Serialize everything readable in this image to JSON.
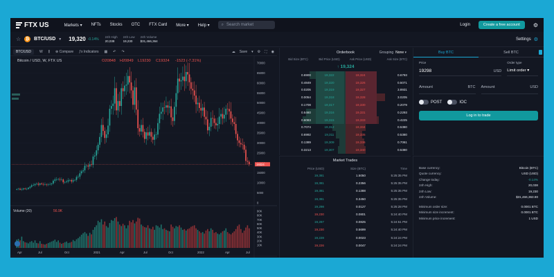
{
  "nav": {
    "logo": "FTX US",
    "links": [
      "Markets ▾",
      "NFTs",
      "Stocks",
      "OTC",
      "FTX Card",
      "More ▾",
      "Help ▾"
    ],
    "search_placeholder": "Search market",
    "login": "Login",
    "cta": "Create a free account"
  },
  "ticker": {
    "pair": "BTC/USD",
    "price": "19,320",
    "change": "-0.14%",
    "high_label": "24h High",
    "high": "20,038",
    "low_label": "24h Low",
    "low": "19,230",
    "vol_label": "24h Volume",
    "vol": "$31,466,364",
    "settings": "Settings"
  },
  "chart_toolbar": {
    "tab": "BTC/USD",
    "interval": "W",
    "compare": "Compare",
    "indicators": "Indicators",
    "save": "Save"
  },
  "chart_data": {
    "type": "candlestick",
    "title": "Bitcoin / USD, W, FTX US",
    "ohlc": {
      "O": "O20848",
      "H": "H20849",
      "L": "L19230",
      "C": "C19324",
      "chg": "-1523 (-7.31%)"
    },
    "current_price_label": "19324",
    "ylim": [
      0,
      70000
    ],
    "yticks": [
      "70000",
      "65000",
      "60000",
      "55000",
      "50000",
      "45000",
      "40000",
      "35000",
      "30000",
      "25000",
      "20000",
      "15000",
      "10000",
      "5000",
      "0"
    ],
    "xticks": [
      "Apr",
      "Jul",
      "Oct",
      "2021",
      "Apr",
      "Jul",
      "Oct",
      "2022",
      "Apr",
      "Jul"
    ],
    "closes": [
      6900,
      7100,
      6600,
      6800,
      7200,
      6900,
      7000,
      7600,
      8100,
      8800,
      8900,
      9400,
      9600,
      9100,
      9700,
      9400,
      9200,
      9300,
      9100,
      9200,
      9400,
      9700,
      11100,
      11700,
      11700,
      11900,
      11600,
      11700,
      10300,
      10400,
      10700,
      11300,
      11400,
      10700,
      11300,
      11500,
      13000,
      13100,
      14800,
      15800,
      16300,
      18600,
      18700,
      18200,
      19300,
      19100,
      23200,
      23700,
      26300,
      29100,
      33000,
      39000,
      36000,
      32500,
      34300,
      38700,
      47100,
      48500,
      49700,
      57400,
      46300,
      51000,
      48500,
      57400,
      55900,
      58700,
      59200,
      63500,
      60300,
      56300,
      49100,
      57800,
      46700,
      37400,
      35700,
      39000,
      35600,
      32000,
      35300,
      33700,
      35500,
      33100,
      31600,
      34200,
      34200,
      39900,
      44600,
      45600,
      47800,
      47700,
      48800,
      47700,
      48300,
      42800,
      41000,
      48100,
      54900,
      62200,
      60800,
      61400,
      63200,
      60900,
      65500,
      64300,
      60400,
      57100,
      56300,
      53700,
      49400,
      50100,
      47500,
      46200,
      47700,
      43100,
      41800,
      36300,
      38100,
      42500,
      42200,
      40000,
      38800,
      39500,
      43200,
      44500,
      42200,
      44100,
      47100,
      47000,
      45800,
      42200,
      40400,
      39500,
      34500,
      31300,
      30000,
      29300,
      29100,
      26600,
      21000,
      20600,
      19300
    ],
    "volume_label": "Volume (20)",
    "volume_value": "56.9K",
    "volume_yticks": [
      "90K",
      "80K",
      "70K",
      "60K",
      "50K",
      "40K",
      "30K",
      "20K",
      "10K"
    ],
    "volumes": [
      22,
      24,
      20,
      30,
      18,
      15,
      14,
      12,
      16,
      18,
      14,
      20,
      13,
      12,
      18,
      11,
      10,
      9,
      11,
      13,
      15,
      17,
      19,
      22,
      16,
      20,
      14,
      11,
      13,
      15,
      17,
      13,
      14,
      16,
      21,
      18,
      23,
      26,
      30,
      35,
      39,
      42,
      38,
      32,
      40,
      36,
      48,
      55,
      60,
      72,
      68,
      76,
      62,
      70,
      58,
      54,
      66,
      74,
      72,
      79,
      82,
      70,
      62,
      58,
      64,
      60,
      52,
      60,
      72,
      68,
      74,
      65,
      70,
      80,
      78,
      62,
      58,
      55,
      54,
      60,
      52,
      50,
      56,
      48,
      60,
      58,
      54,
      62,
      50,
      52,
      48,
      46,
      44,
      62,
      56,
      52,
      58,
      56,
      60,
      54,
      48,
      50,
      46,
      50,
      52,
      56,
      58,
      60,
      52,
      48,
      44,
      40,
      42,
      38,
      46,
      50,
      44,
      52,
      48,
      40,
      42,
      38,
      36,
      40,
      44,
      46,
      52,
      42,
      38,
      36,
      40,
      44,
      50,
      58,
      62,
      50,
      40,
      46,
      54,
      60,
      52
    ],
    "timeframes": [
      "1y",
      "1d",
      "6m",
      "3m",
      "1m",
      "5d",
      "1d",
      "Go to..."
    ],
    "clock": "17:28:09 (UTC)",
    "bottom_right": [
      "%",
      "log",
      "auto"
    ]
  },
  "orderbook": {
    "title": "Orderbook",
    "grouping_label": "Grouping",
    "grouping_value": "None",
    "cols": [
      "Bid Size (BTC)",
      "Bid Price (USD)",
      "Ask Price (USD)",
      "Ask Size (BTC)"
    ],
    "mid_price": "↑ 19,324",
    "rows": [
      {
        "bs": "0.6900",
        "bp": "19,322",
        "ap": "19,324",
        "as": "0.6793",
        "bw": 0.55,
        "aw": 0.12
      },
      {
        "bs": "0.4849",
        "bp": "19,320",
        "ap": "19,326",
        "as": "0.5071",
        "bw": 0.4,
        "aw": 0.45
      },
      {
        "bs": "0.0205",
        "bp": "19,319",
        "ap": "19,327",
        "as": "3.8931",
        "bw": 0.1,
        "aw": 0.2
      },
      {
        "bs": "0.0054",
        "bp": "19,318",
        "ap": "19,328",
        "as": "3.0205",
        "bw": 0.05,
        "aw": 0.6
      },
      {
        "bs": "0.1708",
        "bp": "19,317",
        "ap": "19,330",
        "as": "0.2079",
        "bw": 0.3,
        "aw": 0.4
      },
      {
        "bs": "0.5460",
        "bp": "19,316",
        "ap": "19,331",
        "as": "0.2293",
        "bw": 0.6,
        "aw": 0.35
      },
      {
        "bs": "0.6083",
        "bp": "19,315",
        "ap": "19,333",
        "as": "0.4225",
        "bw": 0.65,
        "aw": 0.5
      },
      {
        "bs": "0.7074",
        "bp": "19,312",
        "ap": "19,334",
        "as": "0.5380",
        "bw": 0.2,
        "aw": 0.3
      },
      {
        "bs": "0.6992",
        "bp": "19,311",
        "ap": "19,335",
        "as": "0.5380",
        "bw": 0.15,
        "aw": 0.25
      },
      {
        "bs": "0.1389",
        "bp": "19,309",
        "ap": "19,336",
        "as": "0.7061",
        "bw": 0.1,
        "aw": 0.28
      },
      {
        "bs": "0.3213",
        "bp": "19,307",
        "ap": "19,340",
        "as": "0.5380",
        "bw": 0.12,
        "aw": 0.3
      }
    ]
  },
  "trades": {
    "title": "Market Trades",
    "cols": [
      "Price (USD)",
      "Size (BTC)",
      "Time"
    ],
    "rows": [
      {
        "p": "19,381",
        "s": "1.5050",
        "t": "5:25:35 PM",
        "side": "g"
      },
      {
        "p": "19,381",
        "s": "0.2356",
        "t": "5:25:35 PM",
        "side": "g"
      },
      {
        "p": "19,381",
        "s": "0.1388",
        "t": "5:25:35 PM",
        "side": "g"
      },
      {
        "p": "19,381",
        "s": "0.3450",
        "t": "5:25:35 PM",
        "side": "g"
      },
      {
        "p": "19,298",
        "s": "0.0127",
        "t": "5:25:28 PM",
        "side": "g"
      },
      {
        "p": "19,230",
        "s": "0.0801",
        "t": "5:24:40 PM",
        "side": "r"
      },
      {
        "p": "19,287",
        "s": "0.0825",
        "t": "5:24:51 PM",
        "side": "g"
      },
      {
        "p": "19,230",
        "s": "0.5699",
        "t": "5:24:40 PM",
        "side": "r"
      },
      {
        "p": "19,228",
        "s": "0.0023",
        "t": "5:24:24 PM",
        "side": "g"
      },
      {
        "p": "19,226",
        "s": "0.0047",
        "t": "5:24:24 PM",
        "side": "r"
      }
    ]
  },
  "order_form": {
    "buy_tab": "Buy BTC",
    "sell_tab": "Sell BTC",
    "price_label": "Price",
    "price_value": "19298",
    "price_unit": "USD",
    "type_label": "Order type",
    "type_value": "Limit order ▾",
    "amount_label": "Amount",
    "amount_unit1": "BTC",
    "amount_unit2": "USD",
    "post": "POST",
    "ioc": "IOC",
    "login_btn": "Log in to trade"
  },
  "market_info": {
    "rows": [
      {
        "k": "Base currency:",
        "v": "Bitcoin (BTC)"
      },
      {
        "k": "Quote currency:",
        "v": "USD (USD)"
      },
      {
        "k": "Change today:",
        "v": "-0.14%",
        "g": true
      },
      {
        "k": "24h High:",
        "v": "20,038"
      },
      {
        "k": "24h Low:",
        "v": "19,230"
      },
      {
        "k": "24h Volume:",
        "v": "$31,466,363.80"
      }
    ],
    "rows2": [
      {
        "k": "Minimum order size:",
        "v": "0.0001 BTC"
      },
      {
        "k": "Minimum size increment:",
        "v": "0.0001 BTC"
      },
      {
        "k": "Minimum price increment:",
        "v": "1 USD"
      }
    ]
  },
  "colors": {
    "accent": "#11999e",
    "up": "#26a69a",
    "down": "#ef5350",
    "bg": "#131722"
  }
}
